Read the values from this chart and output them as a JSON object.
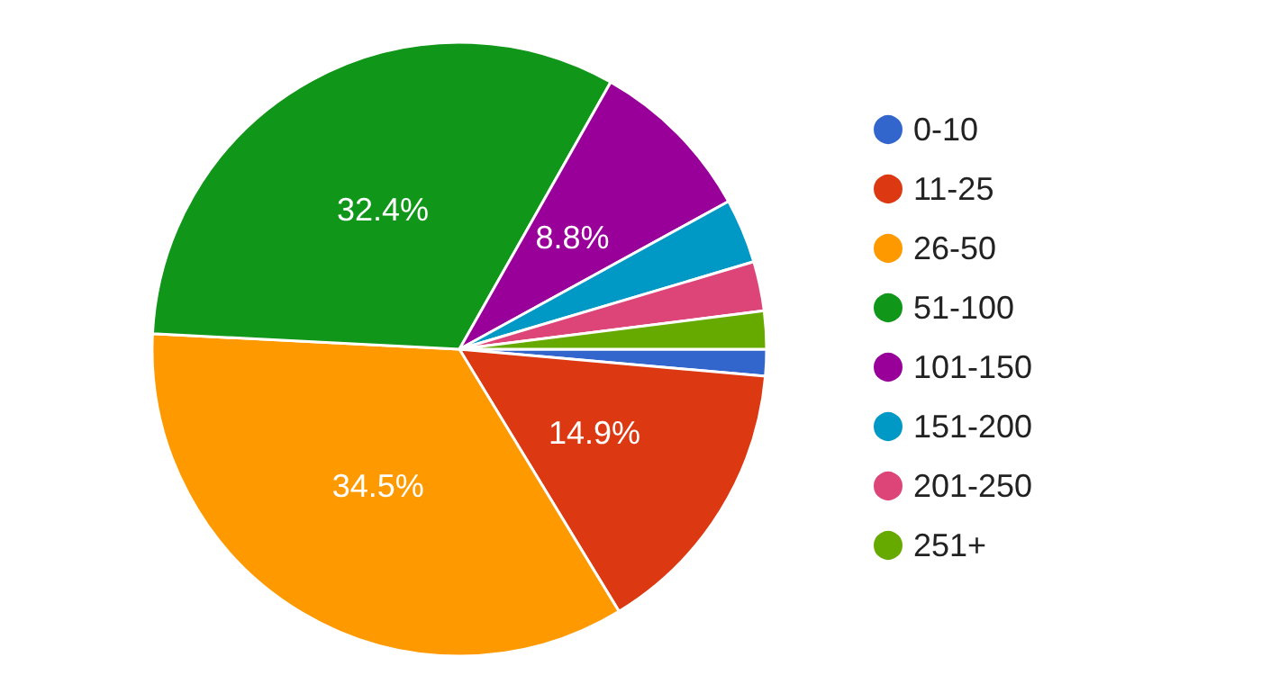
{
  "chart_data": {
    "type": "pie",
    "categories": [
      "0-10",
      "11-25",
      "26-50",
      "51-100",
      "101-150",
      "151-200",
      "201-250",
      "251+"
    ],
    "values": [
      1.4,
      14.9,
      34.5,
      32.4,
      8.8,
      3.4,
      2.6,
      2.0
    ],
    "colors": [
      "#3366cc",
      "#dc3912",
      "#ff9900",
      "#109618",
      "#990099",
      "#0099c6",
      "#dd4477",
      "#66aa00"
    ],
    "value_labels": [
      null,
      "14.9%",
      "34.5%",
      "32.4%",
      "8.8%",
      null,
      null,
      null
    ],
    "legend": "right"
  }
}
